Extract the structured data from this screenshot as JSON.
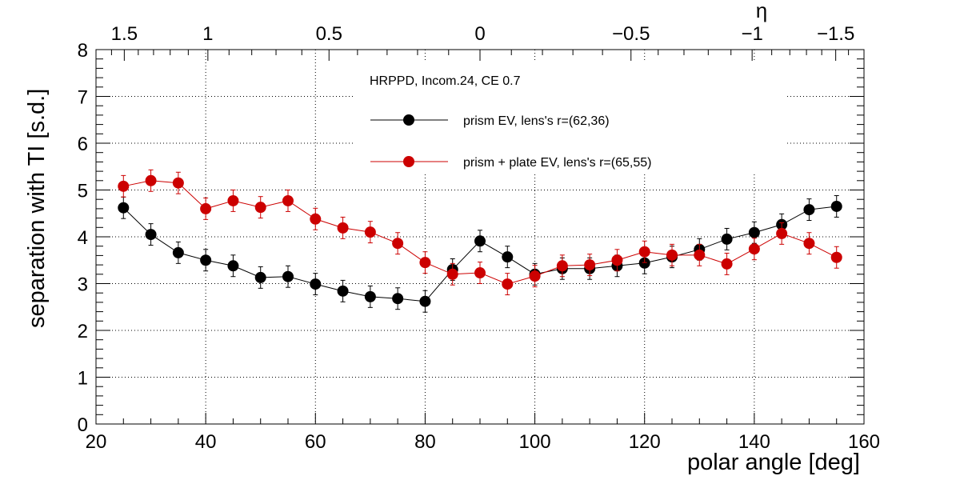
{
  "chart_data": {
    "type": "scatter",
    "title": "HRPPD, Incom.24, CE 0.7",
    "xlabel": "polar angle [deg]",
    "ylabel": "separation with TI [s.d.]",
    "top_axis_label": "η",
    "xlim": [
      20,
      160
    ],
    "ylim": [
      0,
      8
    ],
    "grid": true,
    "legend_placement": "top-center",
    "x_ticks": [
      "20",
      "40",
      "60",
      "80",
      "100",
      "120",
      "140",
      "160"
    ],
    "y_ticks": [
      "0",
      "1",
      "2",
      "3",
      "4",
      "5",
      "6",
      "7",
      "8"
    ],
    "top_ticks": [
      {
        "eta": 1.5,
        "label": "1.5"
      },
      {
        "eta": 1,
        "label": "1"
      },
      {
        "eta": 0.5,
        "label": "0.5"
      },
      {
        "eta": 0,
        "label": "0"
      },
      {
        "eta": -0.5,
        "label": "−0.5"
      },
      {
        "eta": -1,
        "label": "−1"
      },
      {
        "eta": -1.5,
        "label": "−1.5"
      }
    ],
    "x": [
      25,
      30,
      35,
      40,
      45,
      50,
      55,
      60,
      65,
      70,
      75,
      80,
      85,
      90,
      95,
      100,
      105,
      110,
      115,
      120,
      125,
      130,
      135,
      140,
      145,
      150,
      155
    ],
    "series": [
      {
        "name": "prism EV, lens's r=(62,36)",
        "color": "#000000",
        "values": [
          4.62,
          4.05,
          3.66,
          3.5,
          3.38,
          3.13,
          3.15,
          2.99,
          2.84,
          2.72,
          2.68,
          2.62,
          3.3,
          3.91,
          3.57,
          3.2,
          3.32,
          3.32,
          3.38,
          3.44,
          3.57,
          3.73,
          3.95,
          4.09,
          4.26,
          4.58,
          4.65
        ],
        "error": 0.23
      },
      {
        "name": "prism + plate EV, lens's r=(65,55)",
        "color": "#cc0000",
        "values": [
          5.08,
          5.2,
          5.15,
          4.6,
          4.77,
          4.63,
          4.77,
          4.38,
          4.19,
          4.1,
          3.86,
          3.45,
          3.2,
          3.23,
          2.99,
          3.16,
          3.38,
          3.4,
          3.5,
          3.68,
          3.61,
          3.61,
          3.42,
          3.74,
          4.07,
          3.86,
          3.56
        ],
        "error": 0.23
      }
    ]
  }
}
